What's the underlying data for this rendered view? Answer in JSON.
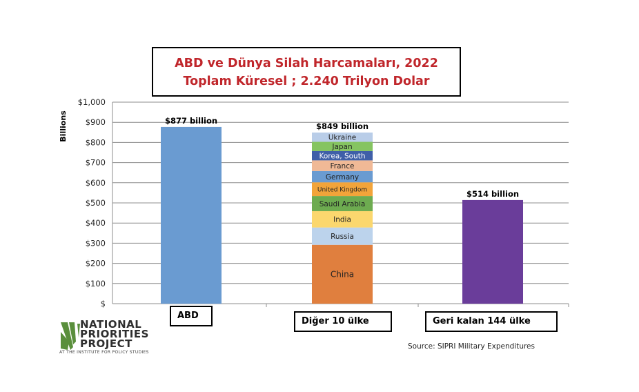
{
  "chart_data": {
    "type": "bar",
    "title": "ABD ve Dünya Silah Harcamaları, 2022",
    "subtitle": "Toplam Küresel ; 2.240 Trilyon Dolar",
    "ylabel": "Billions",
    "ylim": [
      0,
      1000
    ],
    "yticks": [
      0,
      100,
      200,
      300,
      400,
      500,
      600,
      700,
      800,
      900,
      1000
    ],
    "ytick_labels": [
      "$",
      "$100",
      "$200",
      "$300",
      "$400",
      "$500",
      "$600",
      "$700",
      "$800",
      "$900",
      "$1,000"
    ],
    "grid": true,
    "categories": [
      "ABD",
      "Diğer 10 ülke",
      "Geri kalan 144 ülke"
    ],
    "bars": [
      {
        "category": "ABD",
        "value": 877,
        "label": "$877 billion",
        "color": "#6a9bd1"
      },
      {
        "category": "Diğer 10 ülke",
        "value": 849,
        "label": "$849 billion",
        "segments": [
          {
            "name": "China",
            "value": 292,
            "color": "#e07f3e"
          },
          {
            "name": "Russia",
            "value": 86,
            "color": "#bcd3ec"
          },
          {
            "name": "India",
            "value": 81,
            "color": "#fbd76e"
          },
          {
            "name": "Saudi Arabia",
            "value": 75,
            "color": "#6dab50"
          },
          {
            "name": "United Kingdom",
            "value": 68,
            "color": "#f2a43a"
          },
          {
            "name": "Germany",
            "value": 56,
            "color": "#6a9bd1"
          },
          {
            "name": "France",
            "value": 53,
            "color": "#f0b996"
          },
          {
            "name": "Korea, South",
            "value": 46,
            "color": "#3f5fa8"
          },
          {
            "name": "Japan",
            "value": 46,
            "color": "#85c461"
          },
          {
            "name": "Ukraine",
            "value": 46,
            "color": "#b9cde8"
          }
        ]
      },
      {
        "category": "Geri kalan 144 ülke",
        "value": 514,
        "label": "$514 billion",
        "color": "#6a3d9a"
      }
    ]
  },
  "logo": {
    "line1": "NATIONAL",
    "line2": "PRIORITIES",
    "line3": "PROJECT",
    "subline": "AT THE INSTITUTE FOR POLICY STUDIES",
    "color": "#5a8f3c"
  },
  "source": "Source: SIPRI Military Expenditures"
}
